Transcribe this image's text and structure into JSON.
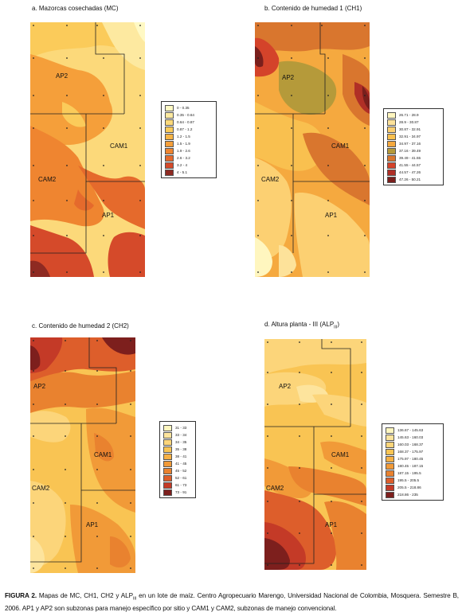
{
  "panels": [
    {
      "id": "mc",
      "title": "a. Mazorcas cosechadas (MC)",
      "zones": [
        "AP2",
        "CAM1",
        "CAM2",
        "AP1"
      ],
      "legend": [
        {
          "label": "0 - 0.35",
          "color": "#fff9c4"
        },
        {
          "label": "0.35 - 0.64",
          "color": "#fde9a0"
        },
        {
          "label": "0.64 - 0.87",
          "color": "#fcd97a"
        },
        {
          "label": "0.87 - 1.2",
          "color": "#fbcb5a"
        },
        {
          "label": "1.2 - 1.5",
          "color": "#f8b546"
        },
        {
          "label": "1.5 - 1.9",
          "color": "#f59f3a"
        },
        {
          "label": "1.9 - 2.6",
          "color": "#ef8530"
        },
        {
          "label": "2.6 - 3.2",
          "color": "#e56a2c"
        },
        {
          "label": "3.2 - 4",
          "color": "#d54a2a"
        },
        {
          "label": "4 - 5.1",
          "color": "#8e2a22"
        }
      ]
    },
    {
      "id": "ch1",
      "title": "b. Contenido de humedad 1 (CH1)",
      "zones": [
        "AP2",
        "CAM1",
        "CAM2",
        "AP1"
      ],
      "legend": [
        {
          "label": "26.71 - 28.9",
          "color": "#fff6bf"
        },
        {
          "label": "28.9 - 30.87",
          "color": "#fde29a"
        },
        {
          "label": "30.87 - 32.91",
          "color": "#fcd072"
        },
        {
          "label": "32.91 - 34.97",
          "color": "#f9c04f"
        },
        {
          "label": "34.97 - 37.16",
          "color": "#f5a93f"
        },
        {
          "label": "37.16 - 39.49",
          "color": "#b59a3a"
        },
        {
          "label": "39.49 - 41.55",
          "color": "#d9762e"
        },
        {
          "label": "41.55 - 44.57",
          "color": "#d4432a"
        },
        {
          "label": "44.57 - 47.26",
          "color": "#b02f26"
        },
        {
          "label": "47.26 - 50.21",
          "color": "#7a1f1c"
        }
      ]
    },
    {
      "id": "ch2",
      "title": "c. Contenido de humedad 2 (CH2)",
      "zones": [
        "AP2",
        "CAM1",
        "CAM2",
        "AP1"
      ],
      "legend": [
        {
          "label": "31 - 33",
          "color": "#fff6bf"
        },
        {
          "label": "33 - 34",
          "color": "#fde49d"
        },
        {
          "label": "34 - 35",
          "color": "#fcd57a"
        },
        {
          "label": "35 - 38",
          "color": "#f9c453"
        },
        {
          "label": "38 - 41",
          "color": "#f6b044"
        },
        {
          "label": "41 - 45",
          "color": "#f19a38"
        },
        {
          "label": "45 - 52",
          "color": "#e9822f"
        },
        {
          "label": "52 - 61",
          "color": "#dd5e2b"
        },
        {
          "label": "61 - 73",
          "color": "#c43a27"
        },
        {
          "label": "73 - 91",
          "color": "#7d1f1d"
        }
      ]
    },
    {
      "id": "alp",
      "title": "d. Altura planta - III (ALP",
      "title_sub": "III",
      "title_end": ")",
      "zones": [
        "AP2",
        "CAM1",
        "CAM2",
        "AP1"
      ],
      "legend": [
        {
          "label": "136.67 - 145.63",
          "color": "#fff6bf"
        },
        {
          "label": "145.63 - 160.03",
          "color": "#fde49d"
        },
        {
          "label": "160.03 - 168.37",
          "color": "#fcd57a"
        },
        {
          "label": "168.37 - 175.97",
          "color": "#f9c453"
        },
        {
          "label": "175.97 - 180.45",
          "color": "#f6b044"
        },
        {
          "label": "180.45 - 187.15",
          "color": "#f19a38"
        },
        {
          "label": "187.15 - 195.5",
          "color": "#e9822f"
        },
        {
          "label": "195.5 - 205.5",
          "color": "#dd5e2b"
        },
        {
          "label": "205.5 - 218.86",
          "color": "#c43a27"
        },
        {
          "label": "218.86 - 235",
          "color": "#7d1f1d"
        }
      ]
    }
  ],
  "caption": {
    "label": "FIGURA 2.",
    "text": "Mapas de MC, CH1, CH2 y ALP",
    "sub": "III",
    "text2": " en un lote de maíz. Centro Agropecuario Marengo, Universidad Nacional de Colombia, Mosquera. Semestre B, 2006. AP1 y AP2 son subzonas para manejo específico por sitio y CAM1 y CAM2, subzonas de manejo convencional."
  }
}
